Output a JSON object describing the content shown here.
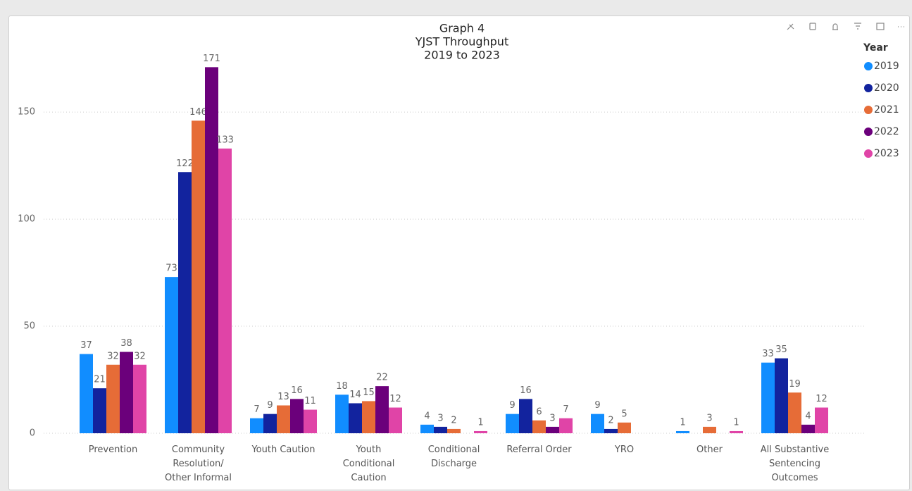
{
  "chart_data": {
    "type": "bar",
    "title": [
      "Graph 4",
      "YJST Throughput",
      "2019 to 2023"
    ],
    "legend_title": "Year",
    "legend": "top-right",
    "grid": true,
    "categories": [
      "Prevention",
      "Community Resolution/ Other Informal",
      "Youth Caution",
      "Youth Conditional Caution",
      "Conditional Discharge",
      "Referral Order",
      "YRO",
      "Other",
      "All Substantive Sentencing Outcomes"
    ],
    "series": [
      {
        "name": "2019",
        "color": "#118DFF",
        "values": [
          37,
          73,
          7,
          18,
          4,
          9,
          9,
          1,
          33
        ]
      },
      {
        "name": "2020",
        "color": "#12239E",
        "values": [
          21,
          122,
          9,
          14,
          3,
          16,
          2,
          null,
          35
        ]
      },
      {
        "name": "2021",
        "color": "#E66C37",
        "values": [
          32,
          146,
          13,
          15,
          2,
          6,
          5,
          3,
          19
        ]
      },
      {
        "name": "2022",
        "color": "#6B007B",
        "values": [
          38,
          171,
          16,
          22,
          null,
          3,
          null,
          null,
          4
        ]
      },
      {
        "name": "2023",
        "color": "#E044A7",
        "values": [
          32,
          133,
          11,
          12,
          1,
          7,
          null,
          1,
          12
        ]
      }
    ],
    "ylim": [
      0,
      180
    ],
    "yticks": [
      0,
      50,
      100,
      150
    ]
  }
}
